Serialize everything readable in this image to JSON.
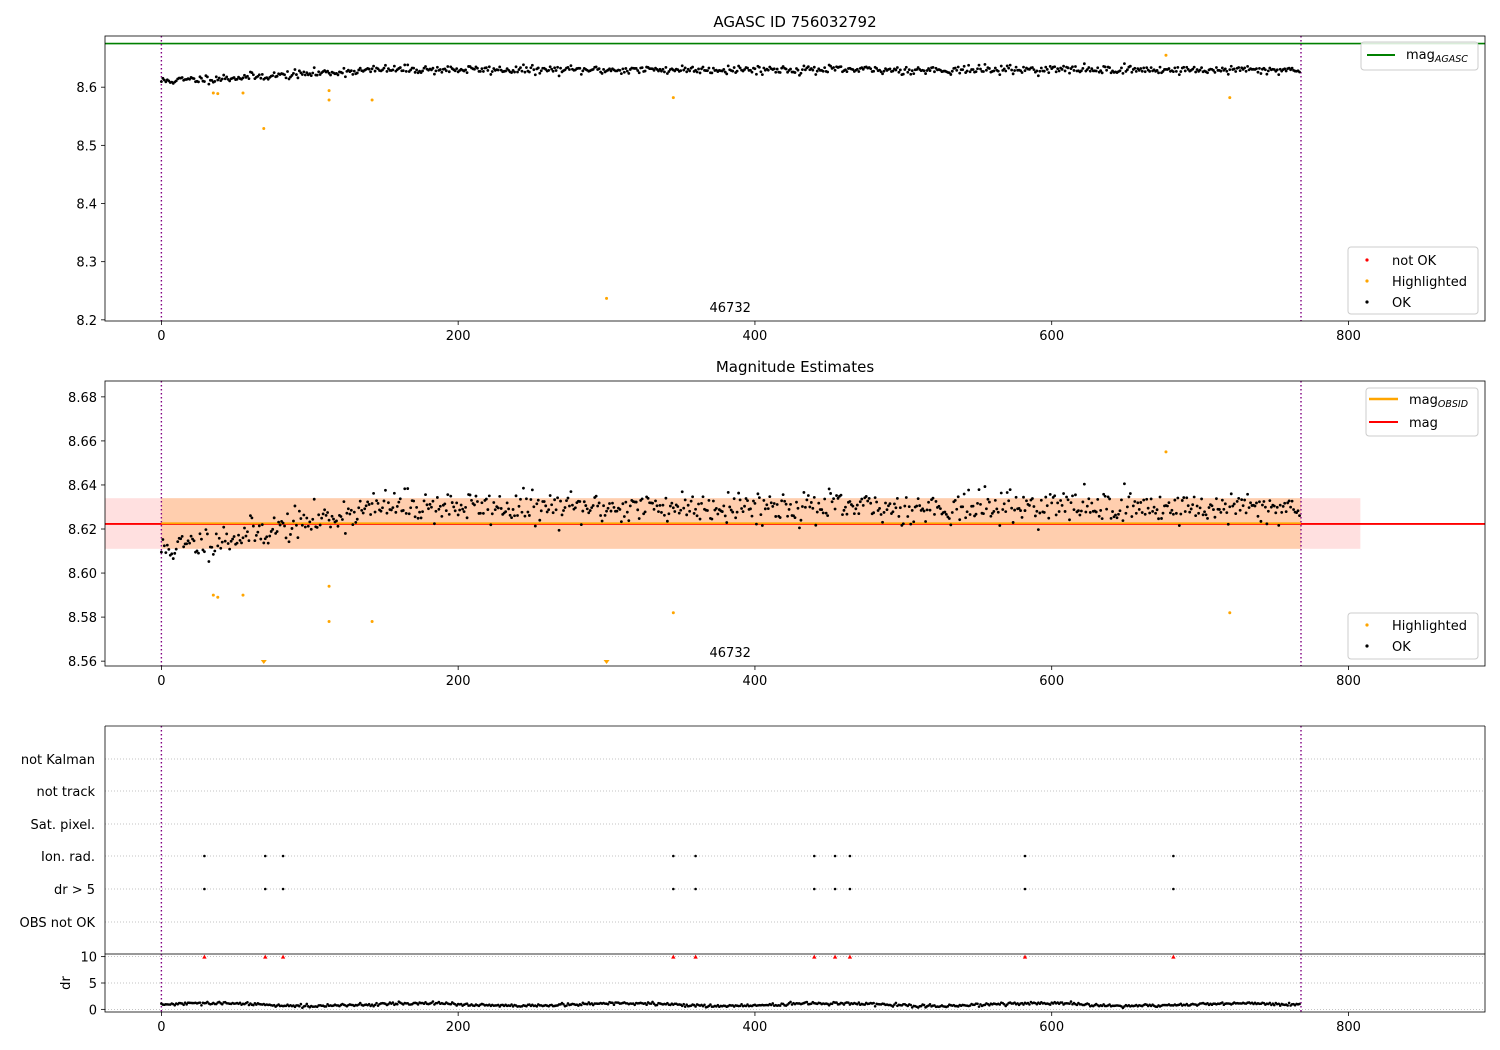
{
  "chart_data": [
    {
      "type": "scatter",
      "title": "AGASC ID 756032792",
      "xlabel": "",
      "ylabel": "",
      "xlim": [
        -38,
        892
      ],
      "ylim": [
        8.198,
        8.688
      ],
      "xticks": [
        0,
        200,
        400,
        600,
        800
      ],
      "yticks": [
        8.2,
        8.3,
        8.4,
        8.5,
        8.6
      ],
      "obsid_label": "46732",
      "obsid_label_x": 384,
      "obsid_boundaries": [
        0,
        768
      ],
      "lines": [
        {
          "name": "mag_AGASC",
          "name_base": "mag",
          "name_sub": "AGASC",
          "y": 8.675,
          "color": "#008000"
        }
      ],
      "ok_series": {
        "name": "OK",
        "color": "#000000",
        "n": 768,
        "base": 8.604,
        "end": 8.63,
        "knee": 150,
        "noise": 0.0065,
        "seed": 11
      },
      "highlighted": {
        "name": "Highlighted",
        "color": "#ffa500",
        "x": [
          35,
          38,
          55,
          69,
          113,
          113,
          142,
          300,
          345,
          677,
          720
        ],
        "y": [
          8.59,
          8.589,
          8.59,
          8.529,
          8.594,
          8.578,
          8.578,
          8.237,
          8.582,
          8.655,
          8.582
        ]
      },
      "not_ok": {
        "name": "not OK",
        "color": "#ff0000"
      },
      "legends": {
        "top_right": [
          {
            "key": "mag_AGASC"
          }
        ],
        "bottom_right": [
          {
            "label": "not OK",
            "color": "#ff0000"
          },
          {
            "label": "Highlighted",
            "color": "#ffa500"
          },
          {
            "label": "OK",
            "color": "#000000"
          }
        ]
      }
    },
    {
      "type": "scatter",
      "title": "Magnitude Estimates",
      "xlabel": "",
      "ylabel": "",
      "xlim": [
        -38,
        892
      ],
      "ylim": [
        8.5578,
        8.6872
      ],
      "xticks": [
        0,
        200,
        400,
        600,
        800
      ],
      "yticks": [
        8.56,
        8.58,
        8.6,
        8.62,
        8.64,
        8.66,
        8.68
      ],
      "obsid_label": "46732",
      "obsid_label_x": 384,
      "obsid_boundaries": [
        0,
        768
      ],
      "lines": [
        {
          "name": "mag_OBSID",
          "name_base": "mag",
          "name_sub": "OBSID",
          "y": 8.6226,
          "x0": 0,
          "x1": 768,
          "color": "#ffa500"
        },
        {
          "name": "mag",
          "name_base": "mag",
          "y": 8.6223,
          "x0": -38,
          "x1": 892,
          "color": "#ff0000"
        }
      ],
      "bands": [
        {
          "name": "mag_OBSID band",
          "y0": 8.611,
          "y1": 8.634,
          "x0": 0,
          "x1": 768,
          "color": "#ffa500",
          "opacity": 0.22
        },
        {
          "name": "mag band",
          "y0": 8.611,
          "y1": 8.634,
          "x0": -38,
          "x1": 808,
          "color": "#ff0000",
          "opacity": 0.12
        }
      ],
      "ok_series": {
        "name": "OK",
        "color": "#000000",
        "n": 768,
        "base": 8.604,
        "end": 8.63,
        "knee": 150,
        "noise": 0.0065,
        "seed": 11
      },
      "highlighted": {
        "name": "Highlighted",
        "color": "#ffa500",
        "x": [
          35,
          38,
          55,
          113,
          113,
          142,
          345,
          677,
          720
        ],
        "y": [
          8.59,
          8.589,
          8.59,
          8.594,
          8.578,
          8.578,
          8.582,
          8.655,
          8.582
        ]
      },
      "below_range": {
        "name": "Highlighted (below range)",
        "color": "#ffa500",
        "x": [
          69,
          300
        ]
      },
      "legends": {
        "top_right": [
          {
            "key": "mag_OBSID"
          },
          {
            "key": "mag"
          }
        ],
        "bottom_right": [
          {
            "label": "Highlighted",
            "color": "#ffa500"
          },
          {
            "label": "OK",
            "color": "#000000"
          }
        ]
      }
    },
    {
      "type": "scatter",
      "title": "",
      "xlabel": "",
      "ylabel": "",
      "xlim": [
        -38,
        892
      ],
      "flag_rows": [
        "not Kalman",
        "not track",
        "Sat. pixel.",
        "Ion. rad.",
        "dr > 5",
        "OBS not OK"
      ],
      "flagged": [
        {
          "row": "Ion. rad.",
          "x": [
            29,
            70,
            82,
            345,
            360,
            440,
            454,
            464,
            582,
            682
          ]
        },
        {
          "row": "dr > 5",
          "x": [
            29,
            70,
            82,
            345,
            360,
            440,
            454,
            464,
            582,
            682
          ]
        }
      ],
      "obsid_boundaries": [
        0,
        768
      ]
    },
    {
      "type": "scatter",
      "title": "",
      "xlabel": "",
      "ylabel": "dr",
      "xlim": [
        -38,
        892
      ],
      "ylim": [
        -0.5,
        10.5
      ],
      "xticks": [
        0,
        200,
        400,
        600,
        800
      ],
      "yticks": [
        0,
        5,
        10
      ],
      "dr_series": {
        "name": "dr",
        "color": "#000000",
        "n": 768,
        "base": 0.9,
        "noise": 0.28,
        "seed": 29
      },
      "clipped": {
        "name": "dr > 10",
        "color": "#ff0000",
        "y": 10,
        "x": [
          29,
          70,
          82,
          345,
          360,
          440,
          454,
          464,
          582,
          682
        ]
      },
      "obsid_boundaries": [
        0,
        768
      ]
    }
  ]
}
